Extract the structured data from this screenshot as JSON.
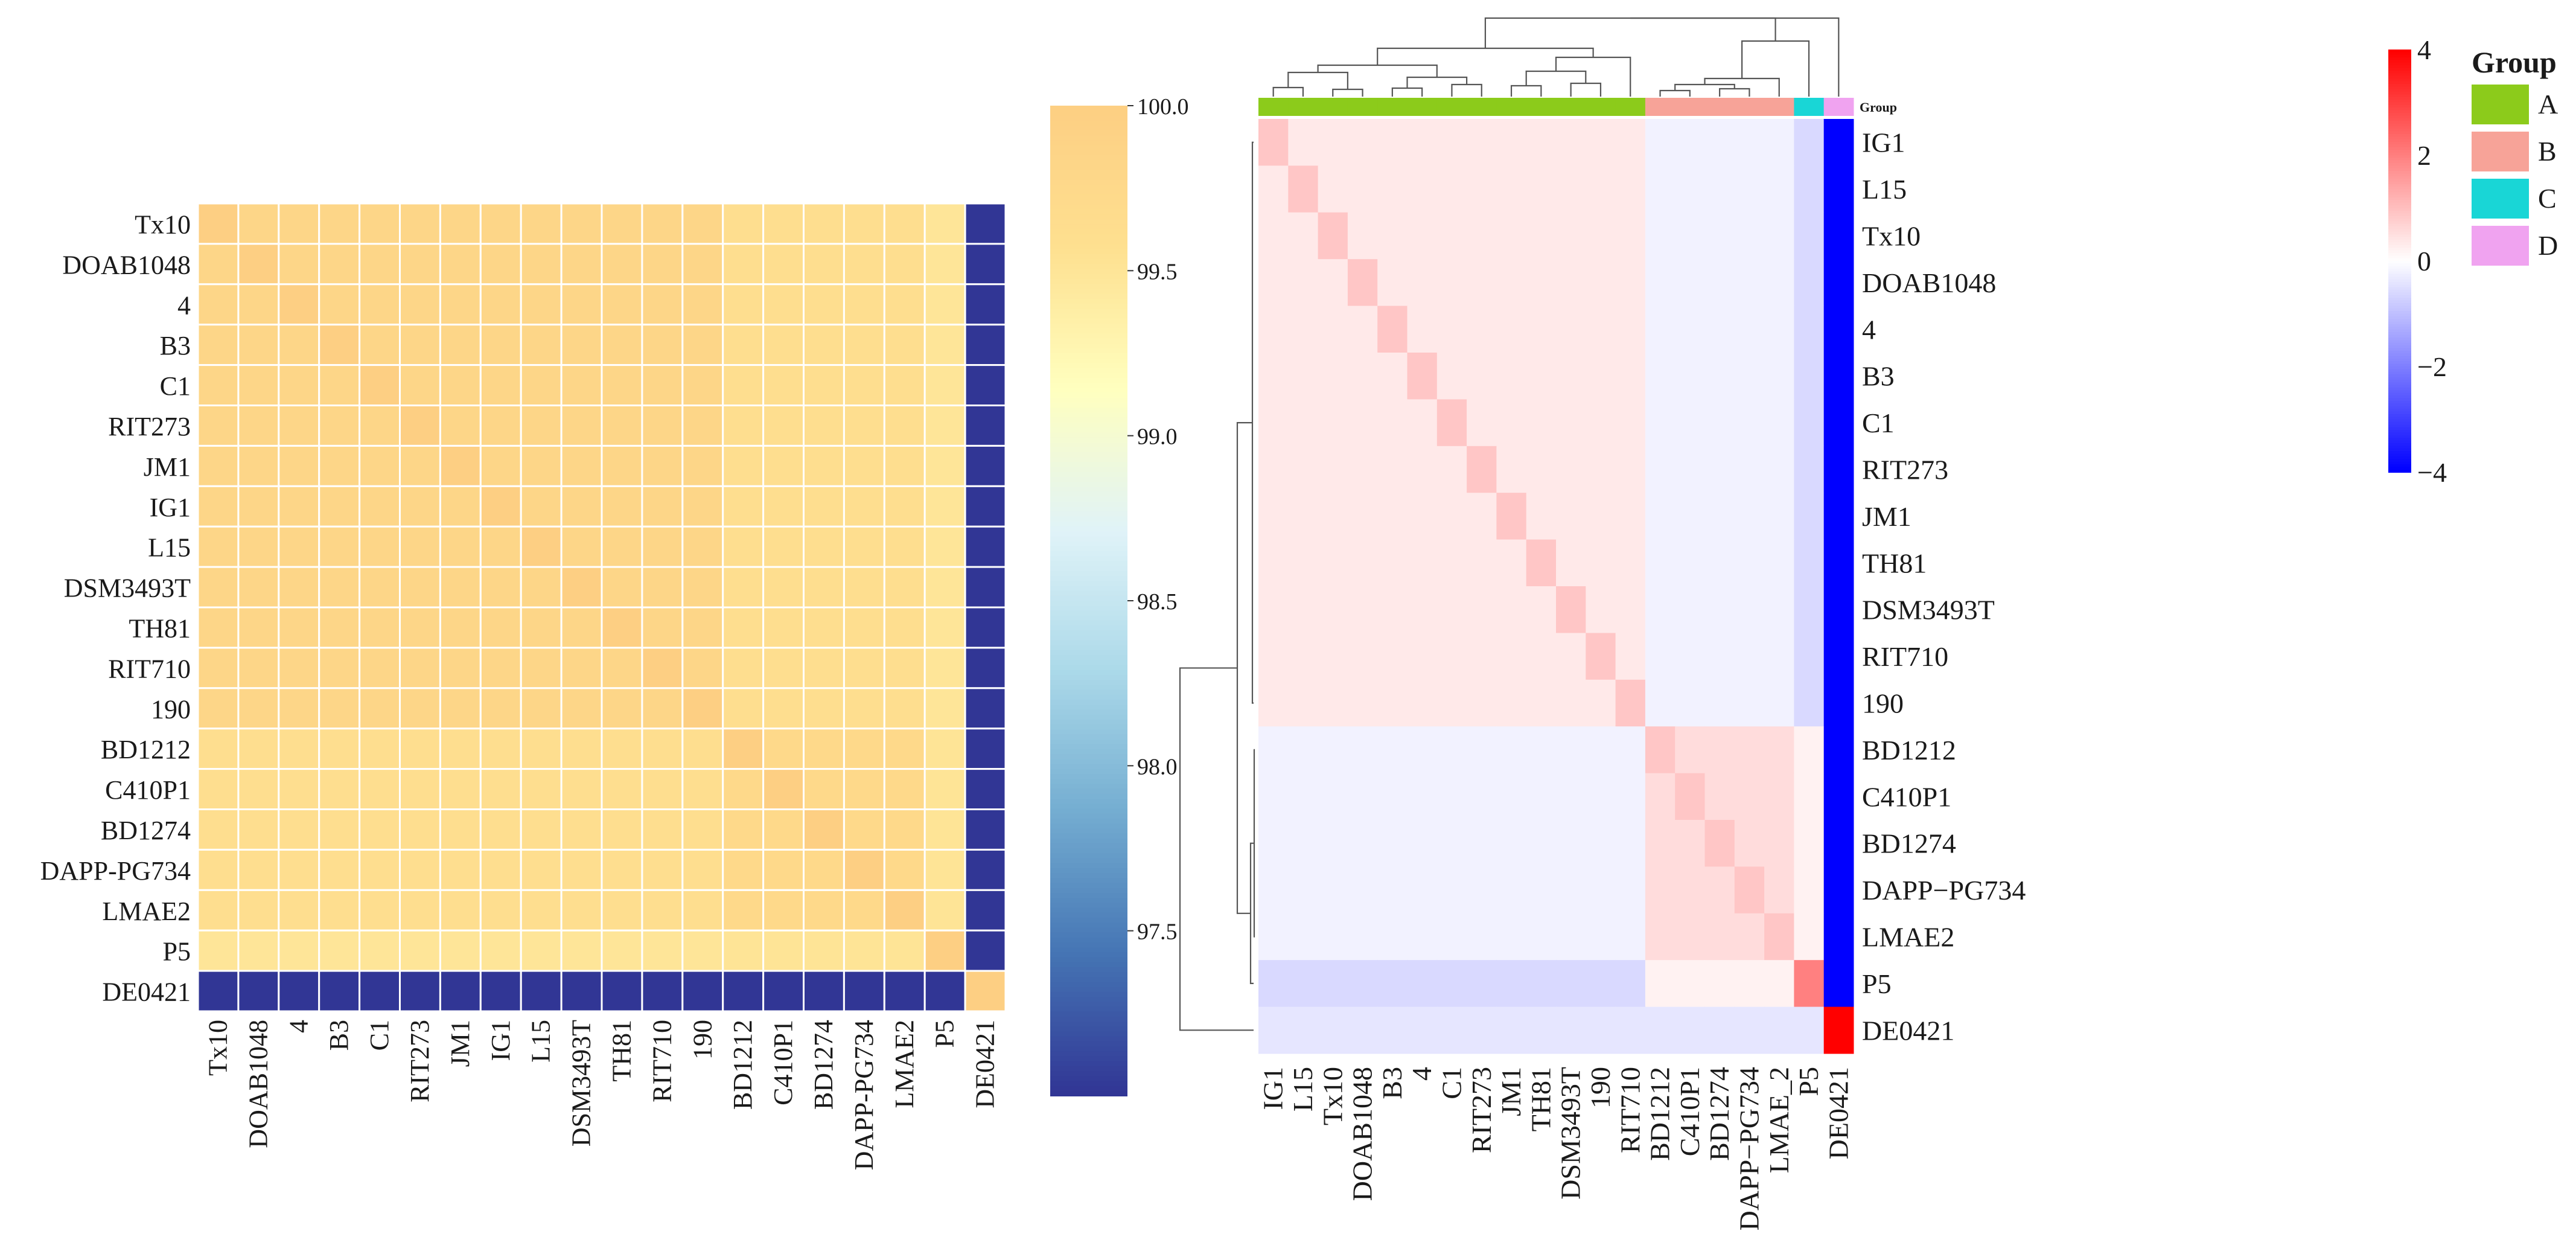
{
  "chart_data": [
    {
      "type": "heatmap",
      "panel": "left",
      "title": "",
      "row_labels": [
        "Tx10",
        "DOAB1048",
        "4",
        "B3",
        "C1",
        "RIT273",
        "JM1",
        "IG1",
        "L15",
        "DSM3493T",
        "TH81",
        "RIT710",
        "190",
        "BD1212",
        "C410P1",
        "BD1274",
        "DAPP-PG734",
        "LMAE2",
        "P5",
        "DE0421"
      ],
      "col_labels": [
        "Tx10",
        "DOAB1048",
        "4",
        "B3",
        "C1",
        "RIT273",
        "JM1",
        "IG1",
        "L15",
        "DSM3493T",
        "TH81",
        "RIT710",
        "190",
        "BD1212",
        "C410P1",
        "BD1274",
        "DAPP-PG734",
        "LMAE2",
        "P5",
        "DE0421"
      ],
      "group_sizes": [
        13,
        5,
        1,
        1
      ],
      "values_description": "pairwise similarity (%)",
      "values": {
        "diagonal": 100.0,
        "within_group_A": 99.82,
        "within_group_B": 99.76,
        "A_vs_B": 99.62,
        "P5_vs_A": 99.5,
        "P5_vs_B": 99.52,
        "DE0421_vs_all": 97.0
      },
      "colorbar": {
        "min": 97.0,
        "max": 100.0,
        "ticks": [
          "100.0",
          "99.5",
          "99.0",
          "98.5",
          "98.0",
          "97.5"
        ],
        "tick_values": [
          100.0,
          99.5,
          99.0,
          98.5,
          98.0,
          97.5
        ]
      },
      "colors": [
        "#313695",
        "#4575b4",
        "#74add1",
        "#abd9e9",
        "#e0f3f8",
        "#ffffbf",
        "#fee090",
        "#fdcf83"
      ]
    },
    {
      "type": "heatmap",
      "panel": "right",
      "title": "",
      "row_labels": [
        "IG1",
        "L15",
        "Tx10",
        "DOAB1048",
        "4",
        "B3",
        "C1",
        "RIT273",
        "JM1",
        "TH81",
        "DSM3493T",
        "RIT710",
        "190",
        "BD1212",
        "C410P1",
        "BD1274",
        "DAPP−PG734",
        "LMAE2",
        "P5",
        "DE0421"
      ],
      "col_labels": [
        "IG1",
        "L15",
        "Tx10",
        "DOAB1048",
        "B3",
        "4",
        "C1",
        "RIT273",
        "JM1",
        "TH81",
        "DSM3493T",
        "190",
        "RIT710",
        "BD1212",
        "C410P1",
        "BD1274",
        "DAPP−PG734",
        "LMAE_2",
        "P5",
        "DE0421"
      ],
      "col_groups": [
        "A",
        "A",
        "A",
        "A",
        "A",
        "A",
        "A",
        "A",
        "A",
        "A",
        "A",
        "A",
        "A",
        "B",
        "B",
        "B",
        "B",
        "B",
        "C",
        "D"
      ],
      "group_sizes": [
        13,
        5,
        1,
        1
      ],
      "group_row_label": "Group",
      "values_description": "scaled z-score",
      "values": {
        "diagonal": 0.9,
        "within_group_A": 0.35,
        "within_group_B": 0.55,
        "A_vs_B": -0.2,
        "P5_vs_A": -0.6,
        "P5_vs_B": 0.2,
        "P5_self": 2.0,
        "DE0421_row_vs_others": -0.4,
        "DE0421_column": -4.0,
        "DE0421_self": 4.0
      },
      "colorbar": {
        "min": -4,
        "max": 4,
        "ticks": [
          "4",
          "2",
          "0",
          "−2",
          "−4"
        ],
        "tick_values": [
          4,
          2,
          0,
          -2,
          -4
        ]
      },
      "colors": {
        "low": "#0000ff",
        "mid": "#ffffff",
        "high": "#ff0000"
      }
    }
  ],
  "legend": {
    "title": "Group",
    "items": [
      {
        "label": "A",
        "color": "#8ccb1b"
      },
      {
        "label": "B",
        "color": "#f7a398"
      },
      {
        "label": "C",
        "color": "#19d6d6"
      },
      {
        "label": "D",
        "color": "#f0a3f0"
      }
    ]
  }
}
